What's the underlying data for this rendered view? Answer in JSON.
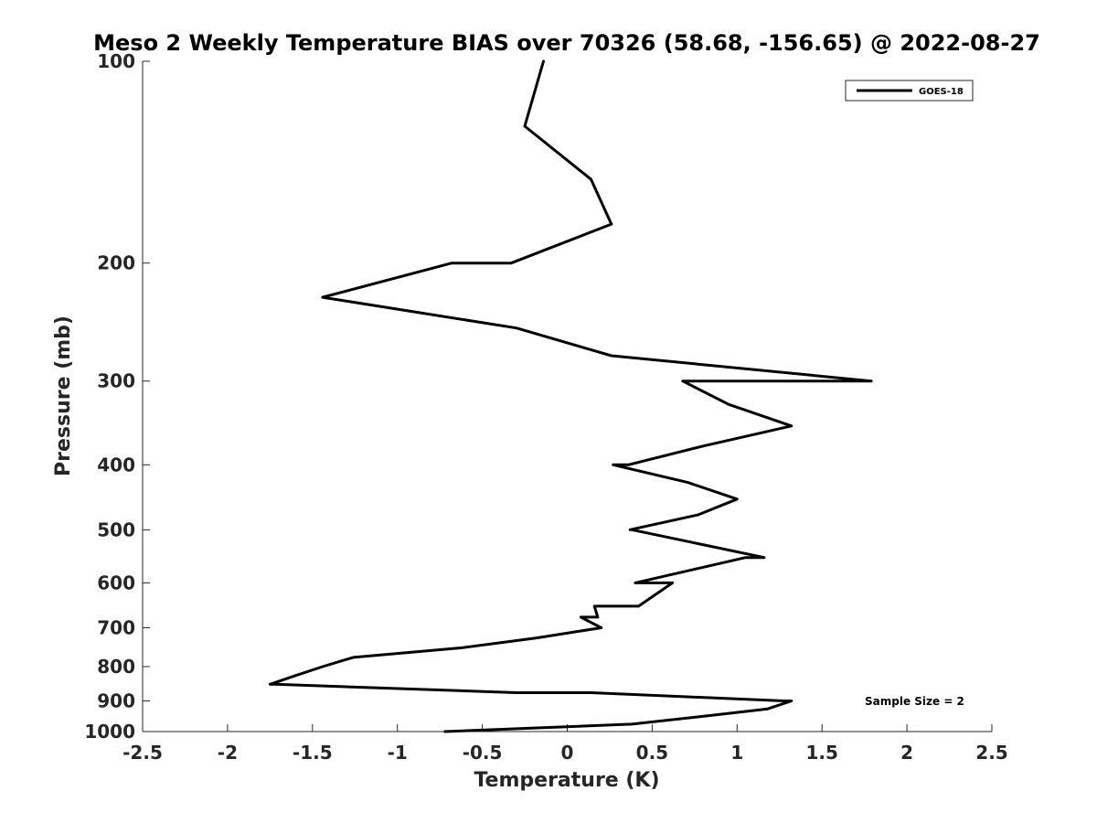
{
  "chart_data": {
    "type": "line",
    "title": "Meso 2 Weekly Temperature BIAS over 70326 (58.68, -156.65) @ 2022-08-27",
    "xlabel": "Temperature (K)",
    "ylabel": "Pressure (mb)",
    "xlim": [
      -2.5,
      2.5
    ],
    "ylim": [
      100,
      1000
    ],
    "y_scale": "log",
    "y_reversed": true,
    "x_ticks": [
      -2.5,
      -2,
      -1.5,
      -1,
      -0.5,
      0,
      0.5,
      1,
      1.5,
      2,
      2.5
    ],
    "x_tick_labels": [
      "-2.5",
      "-2",
      "-1.5",
      "-1",
      "-0.5",
      "0",
      "0.5",
      "1",
      "1.5",
      "2",
      "2.5"
    ],
    "y_ticks": [
      100,
      200,
      300,
      400,
      500,
      600,
      700,
      800,
      900,
      1000
    ],
    "y_tick_labels": [
      "100",
      "200",
      "300",
      "400",
      "500",
      "600",
      "700",
      "800",
      "900",
      "1000"
    ],
    "grid": false,
    "legend_position": "top-right",
    "annotation": "Sample Size = 2",
    "series": [
      {
        "name": "GOES-18",
        "color": "#000000",
        "points": [
          {
            "t": -0.14,
            "p": 100
          },
          {
            "t": -0.25,
            "p": 125
          },
          {
            "t": 0.14,
            "p": 150
          },
          {
            "t": 0.26,
            "p": 175
          },
          {
            "t": -0.33,
            "p": 200
          },
          {
            "t": -0.68,
            "p": 200
          },
          {
            "t": -1.44,
            "p": 225
          },
          {
            "t": -0.3,
            "p": 250
          },
          {
            "t": 0.26,
            "p": 275
          },
          {
            "t": 1.79,
            "p": 300
          },
          {
            "t": 0.68,
            "p": 300
          },
          {
            "t": 0.95,
            "p": 325
          },
          {
            "t": 1.32,
            "p": 350
          },
          {
            "t": 0.8,
            "p": 375
          },
          {
            "t": 0.36,
            "p": 400
          },
          {
            "t": 0.27,
            "p": 400
          },
          {
            "t": 0.71,
            "p": 425
          },
          {
            "t": 1.0,
            "p": 450
          },
          {
            "t": 0.77,
            "p": 475
          },
          {
            "t": 0.37,
            "p": 500
          },
          {
            "t": 0.38,
            "p": 500
          },
          {
            "t": 1.16,
            "p": 550
          },
          {
            "t": 1.05,
            "p": 550
          },
          {
            "t": 0.4,
            "p": 600
          },
          {
            "t": 0.62,
            "p": 600
          },
          {
            "t": 0.42,
            "p": 650
          },
          {
            "t": 0.16,
            "p": 650
          },
          {
            "t": 0.18,
            "p": 675
          },
          {
            "t": 0.08,
            "p": 675
          },
          {
            "t": 0.2,
            "p": 700
          },
          {
            "t": -0.18,
            "p": 725
          },
          {
            "t": -0.62,
            "p": 750
          },
          {
            "t": -1.26,
            "p": 775
          },
          {
            "t": -1.44,
            "p": 800
          },
          {
            "t": -1.6,
            "p": 825
          },
          {
            "t": -1.75,
            "p": 850
          },
          {
            "t": -1.72,
            "p": 850
          },
          {
            "t": -0.3,
            "p": 875
          },
          {
            "t": 0.14,
            "p": 875
          },
          {
            "t": 1.28,
            "p": 900
          },
          {
            "t": 1.32,
            "p": 900
          },
          {
            "t": 1.18,
            "p": 925
          },
          {
            "t": 0.78,
            "p": 950
          },
          {
            "t": 0.38,
            "p": 975
          },
          {
            "t": -0.72,
            "p": 1000
          }
        ]
      }
    ]
  }
}
